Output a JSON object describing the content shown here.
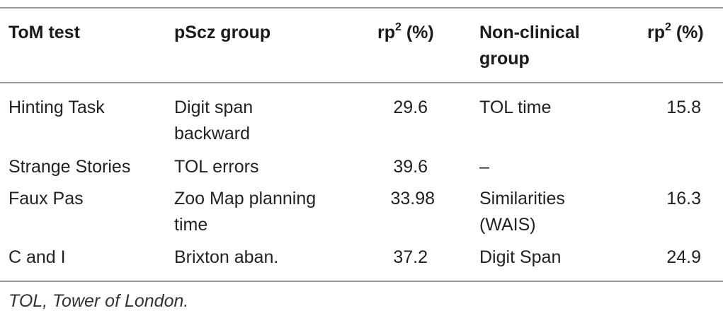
{
  "table": {
    "headers": {
      "col1": "ToM test",
      "col2": "pScz group",
      "col3_base": "rp",
      "col3_sup": "2",
      "col3_tail": " (%)",
      "col4_line1": "Non-clinical",
      "col4_line2": "group",
      "col5_base": "rp",
      "col5_sup": "2",
      "col5_tail": " (%)"
    },
    "rows": [
      {
        "tom_test": "Hinting Task",
        "pscz_line1": "Digit span",
        "pscz_line2": "backward",
        "pscz_rp2": "29.6",
        "nonclinical_line1": "TOL time",
        "nonclinical_line2": "",
        "nonclinical_rp2": "15.8"
      },
      {
        "tom_test": "Strange Stories",
        "pscz_line1": "TOL errors",
        "pscz_line2": "",
        "pscz_rp2": "39.6",
        "nonclinical_line1": "–",
        "nonclinical_line2": "",
        "nonclinical_rp2": ""
      },
      {
        "tom_test": "Faux Pas",
        "pscz_line1": "Zoo Map planning",
        "pscz_line2": "time",
        "pscz_rp2": "33.98",
        "nonclinical_line1": "Similarities",
        "nonclinical_line2": "(WAIS)",
        "nonclinical_rp2": "16.3"
      },
      {
        "tom_test": "C and I",
        "pscz_line1": "Brixton aban.",
        "pscz_line2": "",
        "pscz_rp2": "37.2",
        "nonclinical_line1": "Digit Span",
        "nonclinical_line2": "",
        "nonclinical_rp2": "24.9"
      }
    ],
    "footnote": "TOL, Tower of London."
  }
}
